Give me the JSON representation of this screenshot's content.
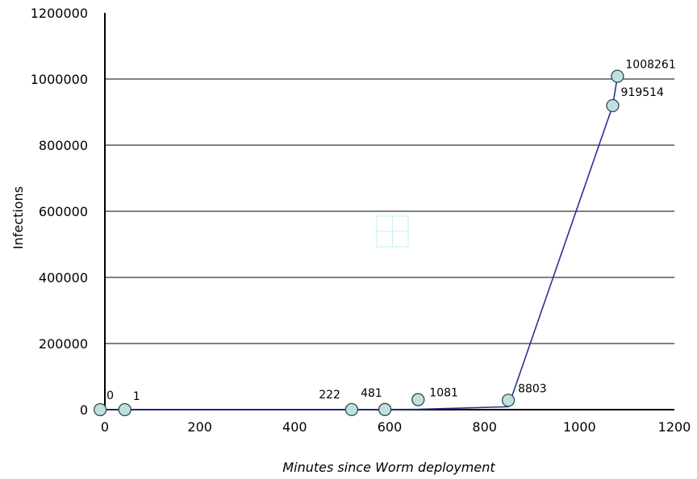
{
  "chart_data": {
    "type": "line",
    "title": "",
    "xlabel": "Minutes since Worm deployment",
    "ylabel": "Infections",
    "xlim": [
      0,
      1200
    ],
    "ylim": [
      0,
      1200000
    ],
    "x_ticks": [
      0,
      200,
      400,
      600,
      800,
      1000,
      1200
    ],
    "y_ticks": [
      0,
      200000,
      400000,
      600000,
      800000,
      1000000,
      1200000
    ],
    "grid": "horizontal",
    "legend": "none",
    "colors": {
      "line": "#2e3192",
      "marker_fill": "#bfe0df",
      "marker_stroke": "#2b4d4d",
      "grid": "#000000"
    },
    "series": [
      {
        "points": [
          {
            "x": -10,
            "y": 0,
            "label": "0"
          },
          {
            "x": 42,
            "y": 1,
            "label": "1"
          },
          {
            "x": 520,
            "y": 222,
            "label": "222"
          },
          {
            "x": 590,
            "y": 481,
            "label": "481"
          },
          {
            "x": 660,
            "y": 1081,
            "label": "1081"
          },
          {
            "x": 850,
            "y": 8803,
            "label": "8803"
          },
          {
            "x": 1070,
            "y": 919514,
            "label": "919514"
          },
          {
            "x": 1080,
            "y": 1008261,
            "label": "1008261"
          }
        ]
      }
    ]
  }
}
